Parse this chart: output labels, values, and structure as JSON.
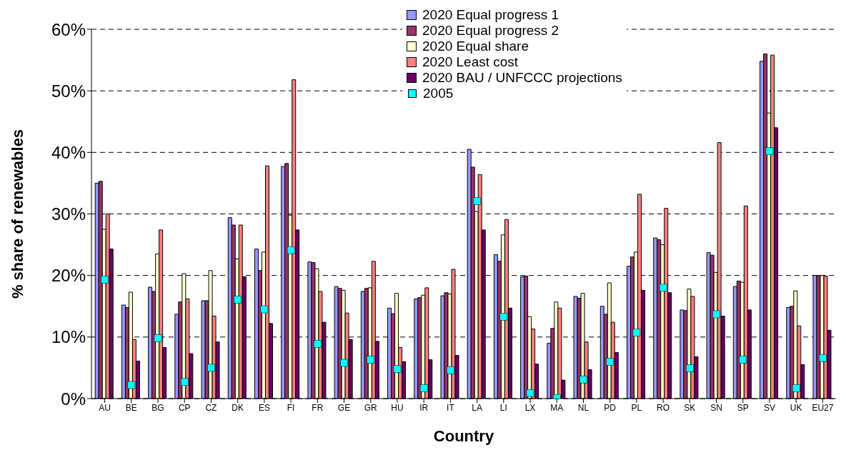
{
  "chart_data": {
    "type": "bar",
    "xlabel": "Country",
    "ylabel": "% share of renewables",
    "categories": [
      "AU",
      "BE",
      "BG",
      "CP",
      "CZ",
      "DK",
      "ES",
      "FI",
      "FR",
      "GE",
      "GR",
      "HU",
      "IR",
      "IT",
      "LA",
      "LI",
      "LX",
      "MA",
      "NL",
      "PD",
      "PL",
      "RO",
      "SK",
      "SN",
      "SP",
      "SV",
      "UK",
      "EU27"
    ],
    "series": [
      {
        "name": "2020 Equal progress 1",
        "color": "#9999ff",
        "values": [
          35,
          15.2,
          18.1,
          13.7,
          15.9,
          29.4,
          24.3,
          37.7,
          22.2,
          18.2,
          17.4,
          14.7,
          16.2,
          16.7,
          40.5,
          23.4,
          19.8,
          9,
          16.6,
          15,
          21.5,
          26.1,
          14.4,
          23.7,
          18.2,
          54.8,
          14.8,
          20
        ]
      },
      {
        "name": "2020 Equal progress 2",
        "color": "#993366",
        "values": [
          35.3,
          14.8,
          17.4,
          15.7,
          15.9,
          28.2,
          20.8,
          38.2,
          22.1,
          17.9,
          17.9,
          13.8,
          16.4,
          17.2,
          37.6,
          22.3,
          19.9,
          11.4,
          16.3,
          13.7,
          23,
          25.8,
          14.3,
          23.3,
          19.1,
          56,
          15,
          20
        ]
      },
      {
        "name": "2020 Equal share",
        "color": "#ffffcc",
        "values": [
          27.5,
          17.3,
          23.5,
          20.3,
          20.8,
          22.7,
          23.8,
          29.8,
          21.1,
          17.6,
          18,
          17.1,
          16.8,
          17,
          30.4,
          26.6,
          13.3,
          15.7,
          17.1,
          18.8,
          23.8,
          25,
          17.8,
          20.5,
          18.9,
          46.4,
          17.5,
          20
        ]
      },
      {
        "name": "2020 Least cost",
        "color": "#ff8080",
        "values": [
          30,
          9.6,
          27.4,
          16.2,
          13.4,
          28.2,
          37.8,
          51.8,
          17.4,
          13.9,
          22.3,
          8.3,
          18,
          21,
          36.4,
          29.1,
          11.3,
          14.7,
          9.2,
          12.4,
          33.2,
          30.9,
          16.6,
          41.6,
          31.3,
          55.8,
          11.8,
          19.9
        ]
      },
      {
        "name": "2020 BAU / UNFCCC projections",
        "color": "#660066",
        "values": [
          24.3,
          6.1,
          8.3,
          7.3,
          9.2,
          19.8,
          12.2,
          27.4,
          12.4,
          9.6,
          9.3,
          6,
          6.3,
          7,
          27.4,
          14.7,
          5.6,
          3,
          4.7,
          7.5,
          17.6,
          17.2,
          6.8,
          13.4,
          14.4,
          44,
          5.5,
          11.1
        ]
      },
      {
        "name": "2005",
        "type": "scatter",
        "marker": "square",
        "color": "#00ffff",
        "values": [
          19.3,
          2.2,
          9.8,
          2.7,
          5,
          16.1,
          14.5,
          24.1,
          8.9,
          5.8,
          6.3,
          4.8,
          1.7,
          4.6,
          32.1,
          13.3,
          0.9,
          0.1,
          3.1,
          6,
          10.7,
          18,
          4.9,
          13.7,
          6.3,
          40.2,
          1.7,
          6.6
        ]
      }
    ],
    "ylim": [
      0,
      60
    ],
    "yticks": [
      {
        "value": 0,
        "label": "0%"
      },
      {
        "value": 10,
        "label": "10%"
      },
      {
        "value": 20,
        "label": "20%"
      },
      {
        "value": 30,
        "label": "30%"
      },
      {
        "value": 40,
        "label": "40%"
      },
      {
        "value": 50,
        "label": "50%"
      },
      {
        "value": 60,
        "label": "60%"
      }
    ],
    "grid": "y",
    "legend": "top"
  }
}
